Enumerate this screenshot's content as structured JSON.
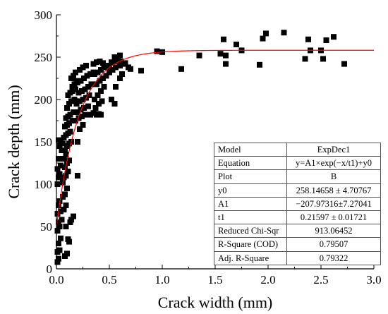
{
  "chart_data": {
    "type": "scatter",
    "xlabel": "Crack width (mm)",
    "ylabel": "Crack depth (mm)",
    "xlim": [
      0,
      3.0
    ],
    "ylim": [
      0,
      300
    ],
    "x_ticks": [
      "0.0",
      "0.5",
      "1.0",
      "1.5",
      "2.0",
      "2.5",
      "3.0"
    ],
    "y_ticks": [
      "0",
      "50",
      "100",
      "150",
      "200",
      "250",
      "300"
    ],
    "grid": false,
    "legend": "none",
    "marker_color": "#000000",
    "fit_color": "#ff0000",
    "fit": {
      "model": "ExpDec1",
      "y0": 258.14658,
      "A1": -207.97316,
      "t1": 0.21597
    },
    "points": [
      [
        0.01,
        8
      ],
      [
        0.02,
        12
      ],
      [
        0.01,
        20
      ],
      [
        0.03,
        22
      ],
      [
        0.02,
        30
      ],
      [
        0.04,
        36
      ],
      [
        0.01,
        45
      ],
      [
        0.03,
        50
      ],
      [
        0.02,
        55
      ],
      [
        0.05,
        58
      ],
      [
        0.01,
        65
      ],
      [
        0.04,
        68
      ],
      [
        0.02,
        75
      ],
      [
        0.03,
        80
      ],
      [
        0.06,
        85
      ],
      [
        0.01,
        100
      ],
      [
        0.02,
        108
      ],
      [
        0.03,
        112
      ],
      [
        0.01,
        118
      ],
      [
        0.04,
        122
      ],
      [
        0.02,
        130
      ],
      [
        0.05,
        140
      ],
      [
        0.03,
        145
      ],
      [
        0.02,
        152
      ],
      [
        0.04,
        150
      ],
      [
        0.06,
        148
      ],
      [
        0.08,
        15
      ],
      [
        0.1,
        18
      ],
      [
        0.12,
        32
      ],
      [
        0.11,
        35
      ],
      [
        0.09,
        50
      ],
      [
        0.13,
        55
      ],
      [
        0.14,
        58
      ],
      [
        0.16,
        62
      ],
      [
        0.07,
        70
      ],
      [
        0.09,
        75
      ],
      [
        0.08,
        88
      ],
      [
        0.1,
        95
      ],
      [
        0.06,
        102
      ],
      [
        0.07,
        108
      ],
      [
        0.09,
        110
      ],
      [
        0.11,
        115
      ],
      [
        0.08,
        120
      ],
      [
        0.1,
        125
      ],
      [
        0.12,
        128
      ],
      [
        0.07,
        130
      ],
      [
        0.09,
        135
      ],
      [
        0.08,
        140
      ],
      [
        0.1,
        145
      ],
      [
        0.12,
        148
      ],
      [
        0.14,
        150
      ],
      [
        0.07,
        155
      ],
      [
        0.09,
        158
      ],
      [
        0.11,
        160
      ],
      [
        0.13,
        162
      ],
      [
        0.08,
        168
      ],
      [
        0.1,
        170
      ],
      [
        0.12,
        172
      ],
      [
        0.15,
        175
      ],
      [
        0.09,
        178
      ],
      [
        0.11,
        180
      ],
      [
        0.13,
        182
      ],
      [
        0.16,
        185
      ],
      [
        0.1,
        190
      ],
      [
        0.12,
        195
      ],
      [
        0.14,
        198
      ],
      [
        0.17,
        200
      ],
      [
        0.11,
        205
      ],
      [
        0.13,
        208
      ],
      [
        0.15,
        210
      ],
      [
        0.18,
        212
      ],
      [
        0.2,
        110
      ],
      [
        0.2,
        150
      ],
      [
        0.22,
        165
      ],
      [
        0.25,
        170
      ],
      [
        0.18,
        175
      ],
      [
        0.21,
        178
      ],
      [
        0.24,
        180
      ],
      [
        0.27,
        182
      ],
      [
        0.2,
        185
      ],
      [
        0.23,
        188
      ],
      [
        0.26,
        190
      ],
      [
        0.3,
        192
      ],
      [
        0.19,
        195
      ],
      [
        0.22,
        198
      ],
      [
        0.25,
        200
      ],
      [
        0.28,
        202
      ],
      [
        0.31,
        205
      ],
      [
        0.21,
        208
      ],
      [
        0.24,
        210
      ],
      [
        0.27,
        212
      ],
      [
        0.3,
        215
      ],
      [
        0.33,
        218
      ],
      [
        0.2,
        220
      ],
      [
        0.23,
        222
      ],
      [
        0.26,
        225
      ],
      [
        0.29,
        228
      ],
      [
        0.32,
        230
      ],
      [
        0.35,
        232
      ],
      [
        0.22,
        235
      ],
      [
        0.25,
        238
      ],
      [
        0.28,
        240
      ],
      [
        0.15,
        215
      ],
      [
        0.17,
        218
      ],
      [
        0.19,
        222
      ],
      [
        0.14,
        225
      ],
      [
        0.16,
        228
      ],
      [
        0.18,
        232
      ],
      [
        0.32,
        182
      ],
      [
        0.35,
        184
      ],
      [
        0.38,
        182
      ],
      [
        0.4,
        183
      ],
      [
        0.42,
        182
      ],
      [
        0.37,
        190
      ],
      [
        0.4,
        195
      ],
      [
        0.43,
        198
      ],
      [
        0.36,
        200
      ],
      [
        0.39,
        205
      ],
      [
        0.42,
        210
      ],
      [
        0.45,
        215
      ],
      [
        0.38,
        218
      ],
      [
        0.41,
        222
      ],
      [
        0.44,
        225
      ],
      [
        0.47,
        228
      ],
      [
        0.36,
        230
      ],
      [
        0.39,
        232
      ],
      [
        0.42,
        235
      ],
      [
        0.45,
        238
      ],
      [
        0.48,
        240
      ],
      [
        0.35,
        242
      ],
      [
        0.38,
        244
      ],
      [
        0.41,
        245
      ],
      [
        0.44,
        243
      ],
      [
        0.47,
        240
      ],
      [
        0.5,
        238
      ],
      [
        0.52,
        200
      ],
      [
        0.55,
        195
      ],
      [
        0.56,
        215
      ],
      [
        0.6,
        225
      ],
      [
        0.62,
        230
      ],
      [
        0.5,
        232
      ],
      [
        0.53,
        235
      ],
      [
        0.56,
        238
      ],
      [
        0.6,
        240
      ],
      [
        0.63,
        242
      ],
      [
        0.52,
        244
      ],
      [
        0.55,
        245
      ],
      [
        0.58,
        246
      ],
      [
        0.61,
        245
      ],
      [
        0.65,
        243
      ],
      [
        0.55,
        250
      ],
      [
        0.6,
        252
      ],
      [
        0.68,
        238
      ],
      [
        0.7,
        236
      ],
      [
        0.8,
        234
      ],
      [
        0.95,
        257
      ],
      [
        1.0,
        256
      ],
      [
        1.18,
        236
      ],
      [
        1.35,
        252
      ],
      [
        1.55,
        254
      ],
      [
        1.58,
        271
      ],
      [
        1.6,
        252
      ],
      [
        1.6,
        242
      ],
      [
        1.7,
        265
      ],
      [
        1.75,
        258
      ],
      [
        1.92,
        241
      ],
      [
        1.95,
        272
      ],
      [
        1.98,
        278
      ],
      [
        2.15,
        279
      ],
      [
        2.35,
        248
      ],
      [
        2.38,
        271
      ],
      [
        2.4,
        258
      ],
      [
        2.5,
        258
      ],
      [
        2.52,
        248
      ],
      [
        2.55,
        270
      ],
      [
        2.62,
        274
      ],
      [
        2.72,
        242
      ]
    ]
  },
  "fit_table": {
    "rows": [
      [
        "Model",
        "ExpDec1"
      ],
      [
        "Equation",
        "y=A1×exp(−x/t1)+y0"
      ],
      [
        "Plot",
        "B"
      ],
      [
        "y0",
        "258.14658 ± 4.70767"
      ],
      [
        "A1",
        "−207.97316±7.27041"
      ],
      [
        "t1",
        "0.21597 ± 0.01721"
      ],
      [
        "Reduced Chi-Sqr",
        "913.06452"
      ],
      [
        "R-Square (COD)",
        "0.79507"
      ],
      [
        "Adj. R-Square",
        "0.79322"
      ]
    ]
  }
}
